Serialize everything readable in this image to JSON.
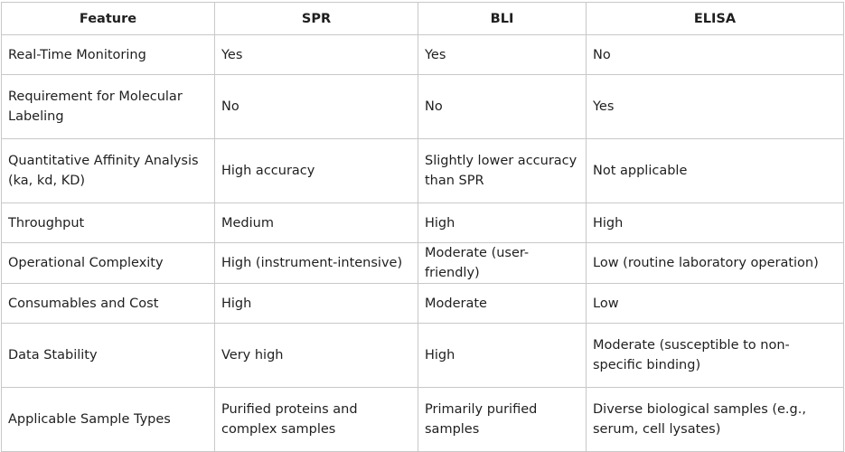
{
  "table": {
    "headers": [
      "Feature",
      "SPR",
      "BLI",
      "ELISA"
    ],
    "rows": [
      [
        "Real-Time Monitoring",
        "Yes",
        "Yes",
        "No"
      ],
      [
        "Requirement for Molecular Labeling",
        "No",
        "No",
        "Yes"
      ],
      [
        "Quantitative Affinity Analysis (ka, kd, KD)",
        "High accuracy",
        "Slightly lower accuracy than SPR",
        "Not applicable"
      ],
      [
        "Throughput",
        "Medium",
        "High",
        "High"
      ],
      [
        "Operational Complexity",
        "High (instrument-intensive)",
        "Moderate (user-friendly)",
        "Low (routine laboratory operation)"
      ],
      [
        "Consumables and Cost",
        "High",
        "Moderate",
        "Low"
      ],
      [
        "Data Stability",
        "Very high",
        "High",
        "Moderate (susceptible to non-specific binding)"
      ],
      [
        "Applicable Sample Types",
        "Purified proteins and complex samples",
        "Primarily purified samples",
        "Diverse biological samples (e.g., serum, cell lysates)"
      ]
    ]
  }
}
